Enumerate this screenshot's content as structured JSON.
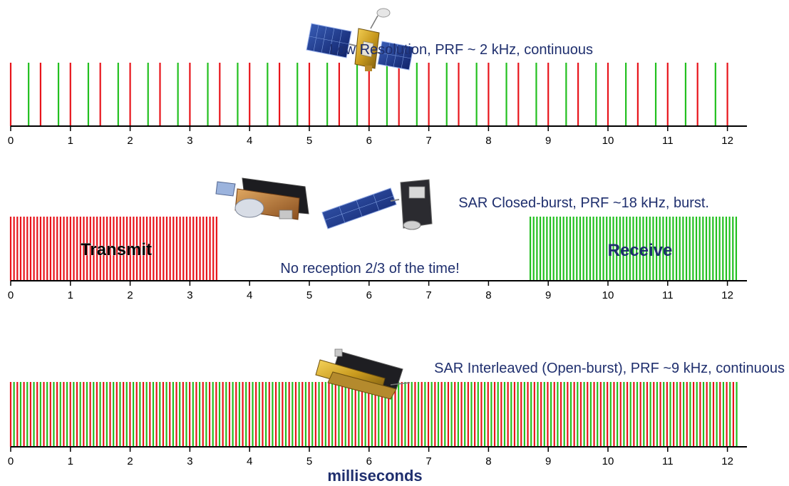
{
  "colors": {
    "red": "#e8141b",
    "green": "#22c01f",
    "navy": "#1f2f6e",
    "axis": "#000000"
  },
  "axis_ticks": [
    "0",
    "1",
    "2",
    "3",
    "4",
    "5",
    "6",
    "7",
    "8",
    "9",
    "10",
    "11",
    "12"
  ],
  "axis_unit": "milliseconds",
  "panels": [
    {
      "title": "Low Resolution, PRF ~ 2 kHz, continuous",
      "mode": "continuous",
      "pulse_interval_ms": 0.5,
      "receive_offset_ms": 0.3,
      "pulse_icon": "satellite-low-res-icon"
    },
    {
      "title": "SAR Closed-burst, PRF ~18 kHz, burst.",
      "mode": "burst",
      "pulse_interval_ms": 0.0556,
      "transmit_window_ms": [
        0,
        3.5
      ],
      "receive_window_ms": [
        8.7,
        12.2
      ],
      "transmit_label": "Transmit",
      "receive_label": "Receive",
      "note": "No reception 2/3 of the time!",
      "pulse_icon": "satellite-closed-burst-icon"
    },
    {
      "title": "SAR Interleaved (Open-burst), PRF ~9 kHz, continuous",
      "mode": "interleaved",
      "pulse_interval_ms": 0.111,
      "pulse_icon": "satellite-interleaved-icon"
    }
  ]
}
